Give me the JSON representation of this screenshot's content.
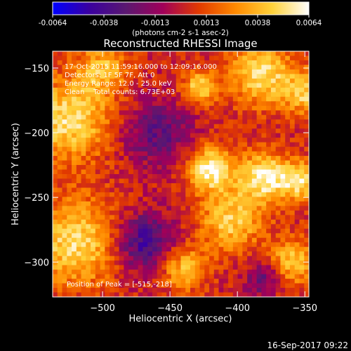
{
  "colors": {
    "background": "#000000",
    "text": "#ffffff",
    "colormap": [
      "#0000ff",
      "#3a00a0",
      "#5a1870",
      "#a0005a",
      "#e23a00",
      "#ff8a00",
      "#ffd23a",
      "#ffffff"
    ]
  },
  "chart_data": {
    "type": "heatmap",
    "title": "Reconstructed RHESSI Image",
    "xlabel": "Heliocentric X (arcsec)",
    "ylabel": "Heliocentric Y (arcsec)",
    "xlim": [
      -537,
      -347
    ],
    "ylim": [
      -327,
      -137
    ],
    "xticks": [
      -500,
      -450,
      -400,
      -350
    ],
    "yticks": [
      -150,
      -200,
      -250,
      -300
    ],
    "colorbar": {
      "range": [
        -0.0064,
        0.0064
      ],
      "ticks": [
        "-0.0064",
        "-0.0038",
        "-0.0013",
        "0.0013",
        "0.0038",
        "0.0064"
      ],
      "unit_label": "(photons cm-2 s-1 asec-2)"
    },
    "grid_size": 54,
    "sources": [
      {
        "x": -525,
        "y": -190,
        "sigma": 22,
        "amp": 0.005
      },
      {
        "x": -520,
        "y": -285,
        "sigma": 24,
        "amp": 0.0048
      },
      {
        "x": -500,
        "y": -150,
        "sigma": 14,
        "amp": 0.0035
      },
      {
        "x": -428,
        "y": -165,
        "sigma": 9,
        "amp": 0.0045
      },
      {
        "x": -420,
        "y": -228,
        "sigma": 12,
        "amp": 0.006
      },
      {
        "x": -382,
        "y": -155,
        "sigma": 17,
        "amp": 0.005
      },
      {
        "x": -380,
        "y": -235,
        "sigma": 14,
        "amp": 0.0055
      },
      {
        "x": -352,
        "y": -238,
        "sigma": 11,
        "amp": 0.0045
      },
      {
        "x": -405,
        "y": -268,
        "sigma": 16,
        "amp": 0.0045
      },
      {
        "x": -348,
        "y": -170,
        "sigma": 12,
        "amp": 0.004
      },
      {
        "x": -440,
        "y": -305,
        "sigma": 12,
        "amp": 0.004
      },
      {
        "x": -360,
        "y": -300,
        "sigma": 13,
        "amp": 0.004
      },
      {
        "x": -460,
        "y": -200,
        "sigma": 18,
        "amp": -0.003
      },
      {
        "x": -470,
        "y": -285,
        "sigma": 16,
        "amp": -0.0045
      },
      {
        "x": -380,
        "y": -312,
        "sigma": 10,
        "amp": -0.003
      }
    ],
    "annotations": {
      "time_range": "17-Oct-2015 11:59:16.000 to 12:09:16.000",
      "detectors": "Detectors: 1F 5F 7F, Att 0",
      "energy_range": "Energy Range: 12.0 - 25.0 keV",
      "clean_counts": "Clean    Total counts: 6.73E+03",
      "peak": "Position of Peak = [-515,-218]"
    }
  },
  "footer": {
    "timestamp": "16-Sep-2017 09:22"
  }
}
